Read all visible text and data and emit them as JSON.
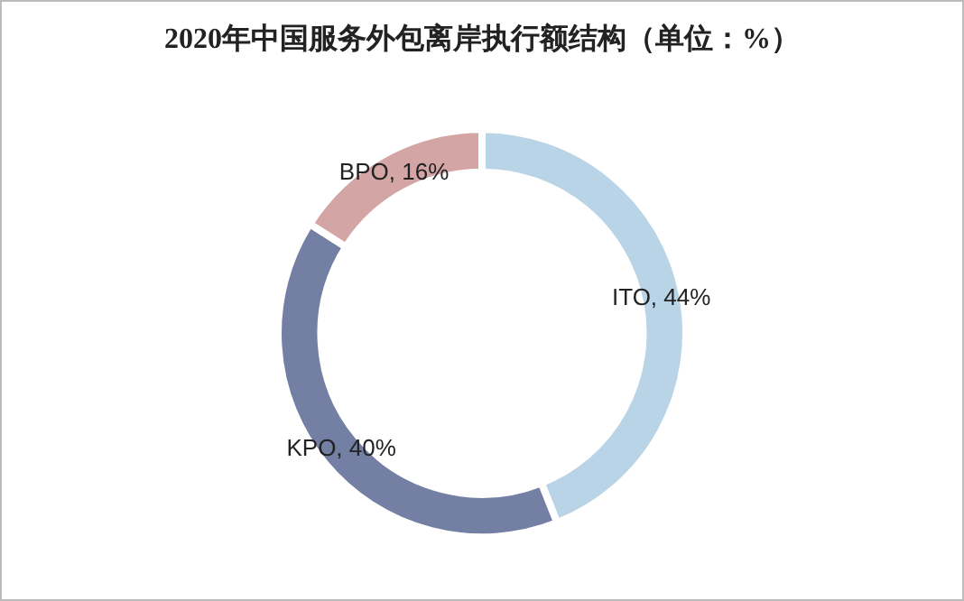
{
  "chart_data": {
    "type": "donut",
    "title": "2020年中国服务外包离岸执行额结构（单位：%）",
    "categories": [
      "ITO",
      "KPO",
      "BPO"
    ],
    "values": [
      44,
      40,
      16
    ],
    "colors": [
      "#b8d4e6",
      "#737fa3",
      "#d4a5a5"
    ],
    "value_labels": [
      "44%",
      "40%",
      "16%"
    ],
    "legend": false
  }
}
